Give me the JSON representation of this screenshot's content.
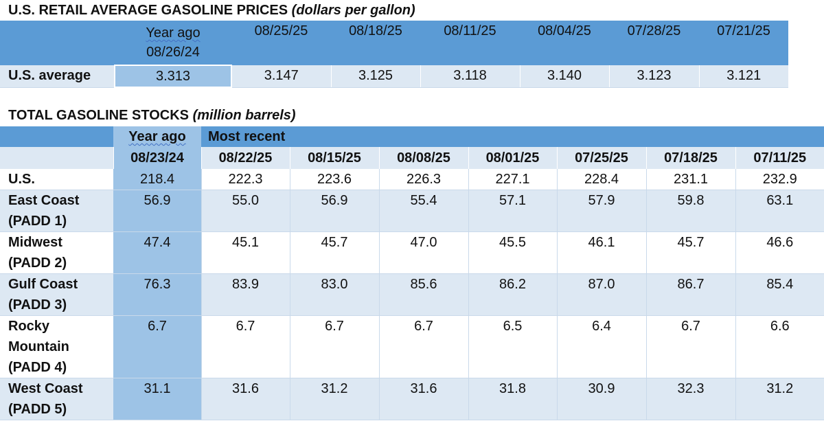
{
  "prices": {
    "title_main": "U.S. RETAIL AVERAGE GASOLINE PRICES",
    "title_unit": "(dollars per gallon)",
    "year_ago_label": "Year ago",
    "year_ago_date": "08/26/24",
    "dates": [
      "08/25/25",
      "08/18/25",
      "08/11/25",
      "08/04/25",
      "07/28/25",
      "07/21/25"
    ],
    "row_label": "U.S. average",
    "year_ago_value": "3.313",
    "values": [
      "3.147",
      "3.125",
      "3.118",
      "3.140",
      "3.123",
      "3.121"
    ]
  },
  "stocks": {
    "title_main": "TOTAL GASOLINE STOCKS",
    "title_unit": "(million barrels)",
    "year_ago_label": "Year ago",
    "most_recent_label": "Most recent",
    "year_ago_date": "08/23/24",
    "dates": [
      "08/22/25",
      "08/15/25",
      "08/08/25",
      "08/01/25",
      "07/25/25",
      "07/18/25",
      "07/11/25"
    ],
    "rows": [
      {
        "label": [
          "U.S."
        ],
        "year_ago": "218.4",
        "values": [
          "222.3",
          "223.6",
          "226.3",
          "227.1",
          "228.4",
          "231.1",
          "232.9"
        ]
      },
      {
        "label": [
          "East Coast",
          "(PADD 1)"
        ],
        "year_ago": "56.9",
        "values": [
          "55.0",
          "56.9",
          "55.4",
          "57.1",
          "57.9",
          "59.8",
          "63.1"
        ]
      },
      {
        "label": [
          "Midwest",
          "(PADD 2)"
        ],
        "year_ago": "47.4",
        "values": [
          "45.1",
          "45.7",
          "47.0",
          "45.5",
          "46.1",
          "45.7",
          "46.6"
        ]
      },
      {
        "label": [
          "Gulf Coast",
          "(PADD 3)"
        ],
        "year_ago": "76.3",
        "values": [
          "83.9",
          "83.0",
          "85.6",
          "86.2",
          "87.0",
          "86.7",
          "85.4"
        ]
      },
      {
        "label": [
          "Rocky",
          "Mountain",
          "(PADD 4)"
        ],
        "year_ago": "6.7",
        "values": [
          "6.7",
          "6.7",
          "6.7",
          "6.5",
          "6.4",
          "6.7",
          "6.6"
        ]
      },
      {
        "label": [
          "West Coast",
          "(PADD 5)"
        ],
        "year_ago": "31.1",
        "values": [
          "31.6",
          "31.2",
          "31.6",
          "31.8",
          "30.9",
          "32.3",
          "31.2"
        ]
      }
    ]
  },
  "colors": {
    "header_blue": "#5b9bd5",
    "year_ago_blue": "#9dc3e6",
    "row_light": "#dde8f3"
  }
}
